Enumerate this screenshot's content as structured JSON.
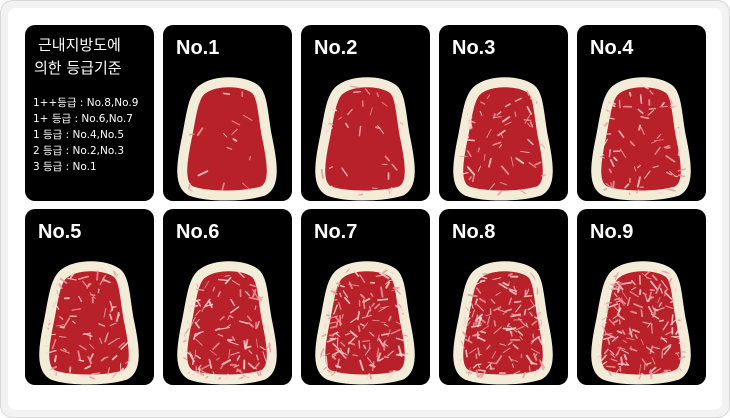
{
  "legend": {
    "title": [
      "근내지방도에",
      "의한 등급기준"
    ],
    "lines": [
      "1++등급 : No.8,No.9",
      "1+  등급 : No.6,No.7",
      "1    등급 : No.4,No.5",
      "2    등급 : No.2,No.3",
      "3    등급 : No.1"
    ]
  },
  "panels": [
    "No.1",
    "No.2",
    "No.3",
    "No.4",
    "No.5",
    "No.6",
    "No.7",
    "No.8",
    "No.9"
  ]
}
